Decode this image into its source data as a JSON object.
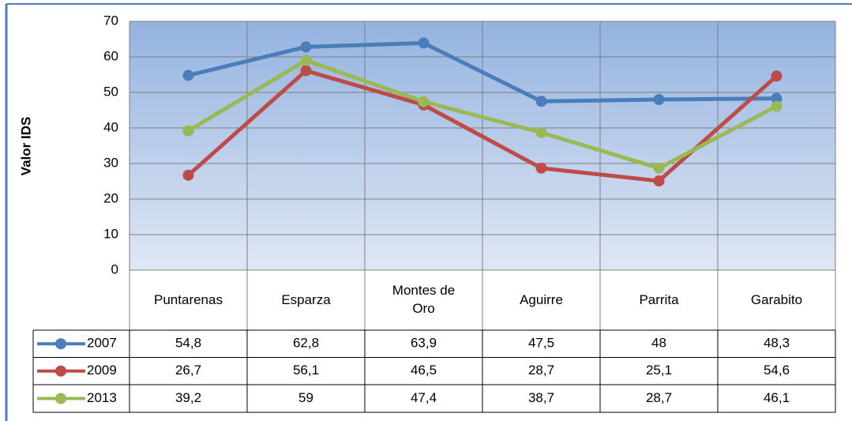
{
  "chart_data": {
    "type": "line",
    "ylabel": "Valor IDS",
    "categories": [
      "Puntarenas",
      "Esparza",
      "Montes de Oro",
      "Aguirre",
      "Parrita",
      "Garabito"
    ],
    "series": [
      {
        "name": "2007",
        "color": "#4a7ebb",
        "values": [
          54.8,
          62.8,
          63.9,
          47.5,
          48,
          48.3
        ],
        "value_labels": [
          "54,8",
          "62,8",
          "63,9",
          "47,5",
          "48",
          "48,3"
        ]
      },
      {
        "name": "2009",
        "color": "#be4b48",
        "values": [
          26.7,
          56.1,
          46.5,
          28.7,
          25.1,
          54.6
        ],
        "value_labels": [
          "26,7",
          "56,1",
          "46,5",
          "28,7",
          "25,1",
          "54,6"
        ]
      },
      {
        "name": "2013",
        "color": "#98b954",
        "values": [
          39.2,
          59,
          47.4,
          38.7,
          28.7,
          46.1
        ],
        "value_labels": [
          "39,2",
          "59",
          "47,4",
          "38,7",
          "28,7",
          "46,1"
        ]
      }
    ],
    "ylim": [
      0,
      70
    ],
    "yticks": [
      0,
      10,
      20,
      30,
      40,
      50,
      60,
      70
    ],
    "grid": true
  }
}
